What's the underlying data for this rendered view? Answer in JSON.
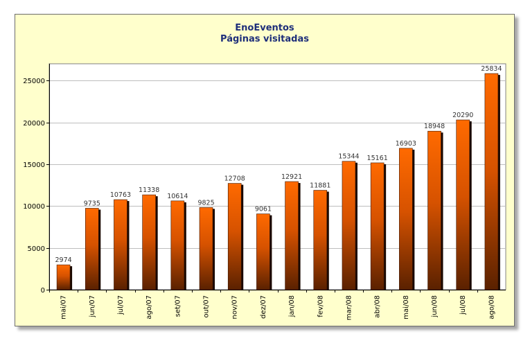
{
  "chart_data": {
    "type": "bar",
    "title": "EnoEventos",
    "subtitle": "Páginas visitadas",
    "xlabel": "",
    "ylabel": "",
    "categories": [
      "mai/07",
      "jun/07",
      "jul/07",
      "ago/07",
      "set/07",
      "out/07",
      "nov/07",
      "dez/07",
      "jan/08",
      "fev/08",
      "mar/08",
      "abr/08",
      "mai/08",
      "jun/08",
      "jul/08",
      "ago/08"
    ],
    "values": [
      2974,
      9735,
      10763,
      11338,
      10614,
      9825,
      12708,
      9061,
      12921,
      11881,
      15344,
      15161,
      16903,
      18948,
      20290,
      25834
    ],
    "ylim": [
      0,
      27000
    ],
    "yticks": [
      0,
      5000,
      10000,
      15000,
      20000,
      25000
    ],
    "grid": true,
    "legend": "none",
    "colors": {
      "bar_top": "#ff6a00",
      "bar_bottom": "#5a2100",
      "background": "#ffffcc",
      "plot_background": "#ffffff",
      "title": "#1f2f7a"
    }
  }
}
